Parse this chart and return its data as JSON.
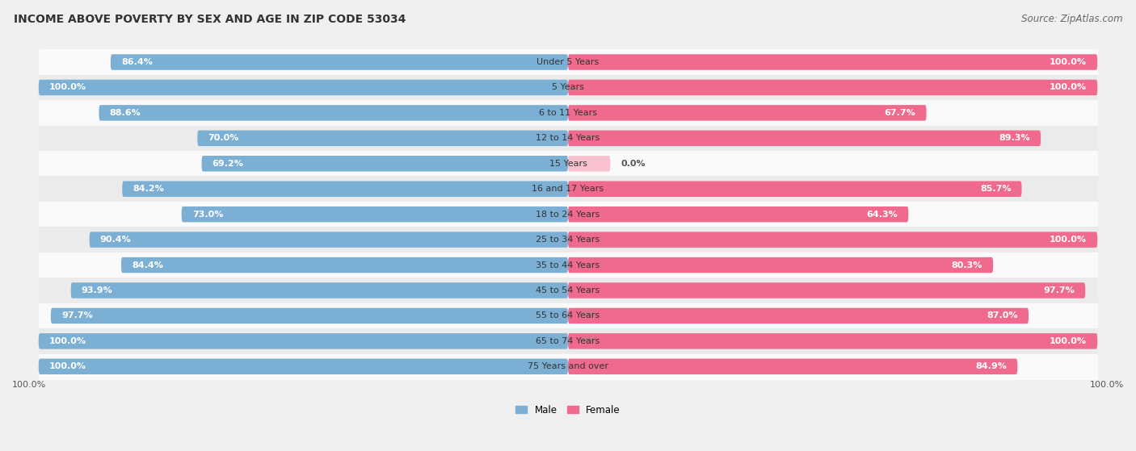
{
  "title": "INCOME ABOVE POVERTY BY SEX AND AGE IN ZIP CODE 53034",
  "source": "Source: ZipAtlas.com",
  "categories": [
    "Under 5 Years",
    "5 Years",
    "6 to 11 Years",
    "12 to 14 Years",
    "15 Years",
    "16 and 17 Years",
    "18 to 24 Years",
    "25 to 34 Years",
    "35 to 44 Years",
    "45 to 54 Years",
    "55 to 64 Years",
    "65 to 74 Years",
    "75 Years and over"
  ],
  "male_values": [
    86.4,
    100.0,
    88.6,
    70.0,
    69.2,
    84.2,
    73.0,
    90.4,
    84.4,
    93.9,
    97.7,
    100.0,
    100.0
  ],
  "female_values": [
    100.0,
    100.0,
    67.7,
    89.3,
    0.0,
    85.7,
    64.3,
    100.0,
    80.3,
    97.7,
    87.0,
    100.0,
    84.9
  ],
  "male_color": "#7bafd4",
  "female_color": "#f06a8e",
  "male_color_light": "#b8d4ea",
  "female_color_light": "#f9c0d0",
  "male_label": "Male",
  "female_label": "Female",
  "background_color": "#f0f0f0",
  "row_color_even": "#fafafa",
  "row_color_odd": "#ebebeb",
  "max_val": 100.0,
  "title_fontsize": 10,
  "source_fontsize": 8.5,
  "label_fontsize": 8,
  "cat_fontsize": 8,
  "tick_fontsize": 8
}
